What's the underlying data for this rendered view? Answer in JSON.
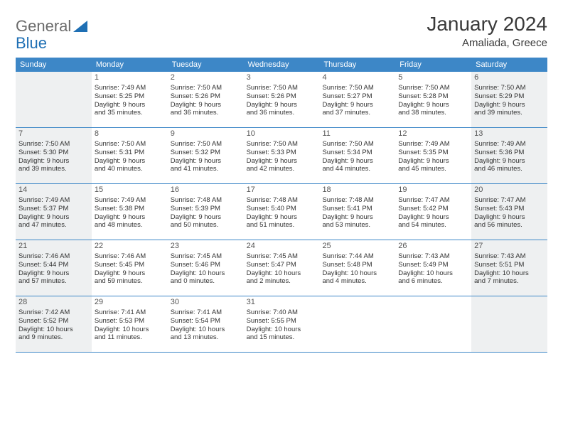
{
  "logo": {
    "text1": "General",
    "text2": "Blue"
  },
  "title": "January 2024",
  "location": "Amaliada, Greece",
  "colors": {
    "header_bg": "#3d87c7",
    "header_text": "#ffffff",
    "border": "#3d87c7",
    "shaded_bg": "#eef0f1",
    "text": "#333333",
    "title_text": "#3a3a3a",
    "logo_gray": "#6b6b6b",
    "logo_blue": "#1e6fb4"
  },
  "weekdays": [
    "Sunday",
    "Monday",
    "Tuesday",
    "Wednesday",
    "Thursday",
    "Friday",
    "Saturday"
  ],
  "weeks": [
    [
      {
        "empty": true,
        "shaded": true
      },
      {
        "num": "1",
        "sunrise": "Sunrise: 7:49 AM",
        "sunset": "Sunset: 5:25 PM",
        "day1": "Daylight: 9 hours",
        "day2": "and 35 minutes."
      },
      {
        "num": "2",
        "sunrise": "Sunrise: 7:50 AM",
        "sunset": "Sunset: 5:26 PM",
        "day1": "Daylight: 9 hours",
        "day2": "and 36 minutes."
      },
      {
        "num": "3",
        "sunrise": "Sunrise: 7:50 AM",
        "sunset": "Sunset: 5:26 PM",
        "day1": "Daylight: 9 hours",
        "day2": "and 36 minutes."
      },
      {
        "num": "4",
        "sunrise": "Sunrise: 7:50 AM",
        "sunset": "Sunset: 5:27 PM",
        "day1": "Daylight: 9 hours",
        "day2": "and 37 minutes."
      },
      {
        "num": "5",
        "sunrise": "Sunrise: 7:50 AM",
        "sunset": "Sunset: 5:28 PM",
        "day1": "Daylight: 9 hours",
        "day2": "and 38 minutes."
      },
      {
        "num": "6",
        "shaded": true,
        "sunrise": "Sunrise: 7:50 AM",
        "sunset": "Sunset: 5:29 PM",
        "day1": "Daylight: 9 hours",
        "day2": "and 39 minutes."
      }
    ],
    [
      {
        "num": "7",
        "shaded": true,
        "sunrise": "Sunrise: 7:50 AM",
        "sunset": "Sunset: 5:30 PM",
        "day1": "Daylight: 9 hours",
        "day2": "and 39 minutes."
      },
      {
        "num": "8",
        "sunrise": "Sunrise: 7:50 AM",
        "sunset": "Sunset: 5:31 PM",
        "day1": "Daylight: 9 hours",
        "day2": "and 40 minutes."
      },
      {
        "num": "9",
        "sunrise": "Sunrise: 7:50 AM",
        "sunset": "Sunset: 5:32 PM",
        "day1": "Daylight: 9 hours",
        "day2": "and 41 minutes."
      },
      {
        "num": "10",
        "sunrise": "Sunrise: 7:50 AM",
        "sunset": "Sunset: 5:33 PM",
        "day1": "Daylight: 9 hours",
        "day2": "and 42 minutes."
      },
      {
        "num": "11",
        "sunrise": "Sunrise: 7:50 AM",
        "sunset": "Sunset: 5:34 PM",
        "day1": "Daylight: 9 hours",
        "day2": "and 44 minutes."
      },
      {
        "num": "12",
        "sunrise": "Sunrise: 7:49 AM",
        "sunset": "Sunset: 5:35 PM",
        "day1": "Daylight: 9 hours",
        "day2": "and 45 minutes."
      },
      {
        "num": "13",
        "shaded": true,
        "sunrise": "Sunrise: 7:49 AM",
        "sunset": "Sunset: 5:36 PM",
        "day1": "Daylight: 9 hours",
        "day2": "and 46 minutes."
      }
    ],
    [
      {
        "num": "14",
        "shaded": true,
        "sunrise": "Sunrise: 7:49 AM",
        "sunset": "Sunset: 5:37 PM",
        "day1": "Daylight: 9 hours",
        "day2": "and 47 minutes."
      },
      {
        "num": "15",
        "sunrise": "Sunrise: 7:49 AM",
        "sunset": "Sunset: 5:38 PM",
        "day1": "Daylight: 9 hours",
        "day2": "and 48 minutes."
      },
      {
        "num": "16",
        "sunrise": "Sunrise: 7:48 AM",
        "sunset": "Sunset: 5:39 PM",
        "day1": "Daylight: 9 hours",
        "day2": "and 50 minutes."
      },
      {
        "num": "17",
        "sunrise": "Sunrise: 7:48 AM",
        "sunset": "Sunset: 5:40 PM",
        "day1": "Daylight: 9 hours",
        "day2": "and 51 minutes."
      },
      {
        "num": "18",
        "sunrise": "Sunrise: 7:48 AM",
        "sunset": "Sunset: 5:41 PM",
        "day1": "Daylight: 9 hours",
        "day2": "and 53 minutes."
      },
      {
        "num": "19",
        "sunrise": "Sunrise: 7:47 AM",
        "sunset": "Sunset: 5:42 PM",
        "day1": "Daylight: 9 hours",
        "day2": "and 54 minutes."
      },
      {
        "num": "20",
        "shaded": true,
        "sunrise": "Sunrise: 7:47 AM",
        "sunset": "Sunset: 5:43 PM",
        "day1": "Daylight: 9 hours",
        "day2": "and 56 minutes."
      }
    ],
    [
      {
        "num": "21",
        "shaded": true,
        "sunrise": "Sunrise: 7:46 AM",
        "sunset": "Sunset: 5:44 PM",
        "day1": "Daylight: 9 hours",
        "day2": "and 57 minutes."
      },
      {
        "num": "22",
        "sunrise": "Sunrise: 7:46 AM",
        "sunset": "Sunset: 5:45 PM",
        "day1": "Daylight: 9 hours",
        "day2": "and 59 minutes."
      },
      {
        "num": "23",
        "sunrise": "Sunrise: 7:45 AM",
        "sunset": "Sunset: 5:46 PM",
        "day1": "Daylight: 10 hours",
        "day2": "and 0 minutes."
      },
      {
        "num": "24",
        "sunrise": "Sunrise: 7:45 AM",
        "sunset": "Sunset: 5:47 PM",
        "day1": "Daylight: 10 hours",
        "day2": "and 2 minutes."
      },
      {
        "num": "25",
        "sunrise": "Sunrise: 7:44 AM",
        "sunset": "Sunset: 5:48 PM",
        "day1": "Daylight: 10 hours",
        "day2": "and 4 minutes."
      },
      {
        "num": "26",
        "sunrise": "Sunrise: 7:43 AM",
        "sunset": "Sunset: 5:49 PM",
        "day1": "Daylight: 10 hours",
        "day2": "and 6 minutes."
      },
      {
        "num": "27",
        "shaded": true,
        "sunrise": "Sunrise: 7:43 AM",
        "sunset": "Sunset: 5:51 PM",
        "day1": "Daylight: 10 hours",
        "day2": "and 7 minutes."
      }
    ],
    [
      {
        "num": "28",
        "shaded": true,
        "sunrise": "Sunrise: 7:42 AM",
        "sunset": "Sunset: 5:52 PM",
        "day1": "Daylight: 10 hours",
        "day2": "and 9 minutes."
      },
      {
        "num": "29",
        "sunrise": "Sunrise: 7:41 AM",
        "sunset": "Sunset: 5:53 PM",
        "day1": "Daylight: 10 hours",
        "day2": "and 11 minutes."
      },
      {
        "num": "30",
        "sunrise": "Sunrise: 7:41 AM",
        "sunset": "Sunset: 5:54 PM",
        "day1": "Daylight: 10 hours",
        "day2": "and 13 minutes."
      },
      {
        "num": "31",
        "sunrise": "Sunrise: 7:40 AM",
        "sunset": "Sunset: 5:55 PM",
        "day1": "Daylight: 10 hours",
        "day2": "and 15 minutes."
      },
      {
        "empty": true
      },
      {
        "empty": true
      },
      {
        "empty": true,
        "shaded": true
      }
    ]
  ]
}
